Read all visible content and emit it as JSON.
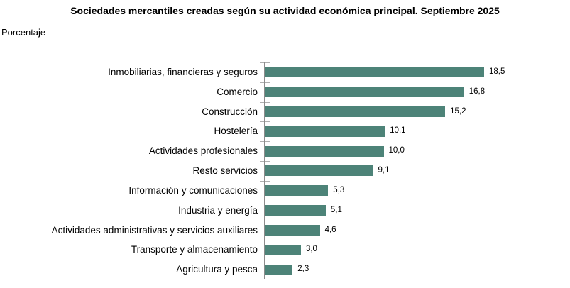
{
  "title": "Sociedades mercantiles creadas según su actividad económica principal. Septiembre 2025",
  "subtitle": "Porcentaje",
  "colors": {
    "bar": "#4d8378",
    "axis": "#8c8c8c",
    "tick": "#b0b0b0",
    "text": "#000000",
    "background": "#ffffff"
  },
  "chart_data": {
    "type": "bar",
    "orientation": "horizontal",
    "title": "Sociedades mercantiles creadas según su actividad económica principal. Septiembre 2025",
    "subtitle": "Porcentaje",
    "xlabel": "",
    "ylabel": "",
    "xlim": [
      0,
      20
    ],
    "grid": false,
    "legend": null,
    "categories": [
      "Inmobiliarias, financieras y seguros",
      "Comercio",
      "Construcción",
      "Hostelería",
      "Actividades profesionales",
      "Resto servicios",
      "Información y comunicaciones",
      "Industria y energía",
      "Actividades administrativas y servicios auxiliares",
      "Transporte y almacenamiento",
      "Agricultura y pesca"
    ],
    "values": [
      18.5,
      16.8,
      15.2,
      10.1,
      10.0,
      9.1,
      5.3,
      5.1,
      4.6,
      3.0,
      2.3
    ],
    "value_labels": [
      "18,5",
      "16,8",
      "15,2",
      "10,1",
      "10,0",
      "9,1",
      "5,3",
      "5,1",
      "4,6",
      "3,0",
      "2,3"
    ]
  }
}
